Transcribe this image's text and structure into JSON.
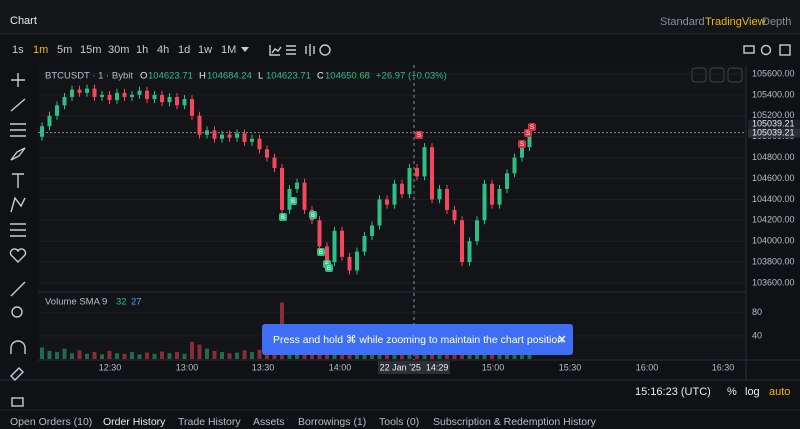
{
  "header": {
    "title": "Chart",
    "views": [
      "Standard",
      "TradingView",
      "Depth"
    ],
    "active_view": 1
  },
  "intervals": [
    "1s",
    "1m",
    "5m",
    "15m",
    "30m",
    "1h",
    "4h",
    "1d",
    "1w",
    "1M"
  ],
  "active_interval": 1,
  "chart": {
    "symbol": "BTCUSDT · 1 · Bybit",
    "legend": [
      {
        "key": "O",
        "value": "104623.71"
      },
      {
        "key": "H",
        "value": "104684.24"
      },
      {
        "key": "L",
        "value": "104623.71"
      },
      {
        "key": "C",
        "value": "104650.68"
      }
    ],
    "change": "+26.97 (+0.03%)",
    "ylim": [
      103533,
      105686
    ],
    "yticks": [
      {
        "value": 105600,
        "label": "105600.00"
      },
      {
        "value": 105400,
        "label": "105400.00"
      },
      {
        "value": 105200,
        "label": "105200.00"
      },
      {
        "value": 105000,
        "label": "105000.00"
      },
      {
        "value": 104800,
        "label": "104800.00"
      },
      {
        "value": 104600,
        "label": "104600.00"
      },
      {
        "value": 104400,
        "label": "104400.00"
      },
      {
        "value": 104200,
        "label": "104200.00"
      },
      {
        "value": 104000,
        "label": "104000.00"
      },
      {
        "value": 103800,
        "label": "103800.00"
      },
      {
        "value": 103600,
        "label": "103600.00"
      }
    ],
    "price_line": {
      "value": 105039.21,
      "labels": [
        "105039.21",
        "105039.21"
      ]
    },
    "open": 105000,
    "closes": [
      105100,
      105200,
      105300,
      105380,
      105450,
      105420,
      105460,
      105380,
      105400,
      105350,
      105420,
      105380,
      105400,
      105440,
      105360,
      105400,
      105330,
      105380,
      105300,
      105360,
      105200,
      105020,
      105060,
      104980,
      105020,
      104990,
      105030,
      104950,
      104980,
      104880,
      104800,
      104700,
      104300,
      104500,
      104560,
      104300,
      104200,
      103950,
      103800,
      104100,
      103850,
      103720,
      103900,
      104050,
      104150,
      104400,
      104350,
      104550,
      104450,
      104700,
      104620,
      104900,
      104400,
      104500,
      104300,
      104200,
      103800,
      104000,
      104200,
      104550,
      104350,
      104500,
      104650,
      104800,
      104900,
      105000
    ],
    "markers": [
      "B",
      "B",
      "B",
      "B",
      "B",
      "B",
      "S",
      "S",
      "S",
      "S"
    ],
    "volume": {
      "title": "Volume SMA 9",
      "sma": [
        "32",
        "27"
      ],
      "ylim": [
        0,
        111
      ],
      "yticks": [
        40,
        80
      ],
      "values": [
        20,
        14,
        12,
        18,
        10,
        15,
        9,
        12,
        8,
        14,
        10,
        9,
        12,
        8,
        11,
        9,
        13,
        10,
        12,
        9,
        30,
        25,
        18,
        14,
        12,
        10,
        11,
        15,
        12,
        16,
        22,
        30,
        98,
        40,
        28,
        35,
        30,
        45,
        38,
        26,
        30,
        42,
        28,
        24,
        22,
        30,
        20,
        26,
        22,
        35,
        28,
        45,
        50,
        30,
        25,
        28,
        60,
        35,
        28,
        40,
        25,
        20,
        26,
        30,
        22,
        28
      ]
    },
    "xticks": [
      "12:30",
      "13:00",
      "13:30",
      "14:00",
      "15:00",
      "15:30",
      "16:00",
      "16:30"
    ],
    "crosshair": "22 Jan '25  14:29"
  },
  "toast": "Press and hold ⌘ while zooming to maintain the chart position",
  "status": {
    "time": "15:16:23 (UTC)",
    "options": [
      "%",
      "log",
      "auto"
    ]
  },
  "tabs": [
    "Open Orders (10)",
    "Order History",
    "Trade History",
    "Assets",
    "Borrowings (1)",
    "Tools (0)",
    "Subscription & Redemption History"
  ],
  "active_tab": 1
}
